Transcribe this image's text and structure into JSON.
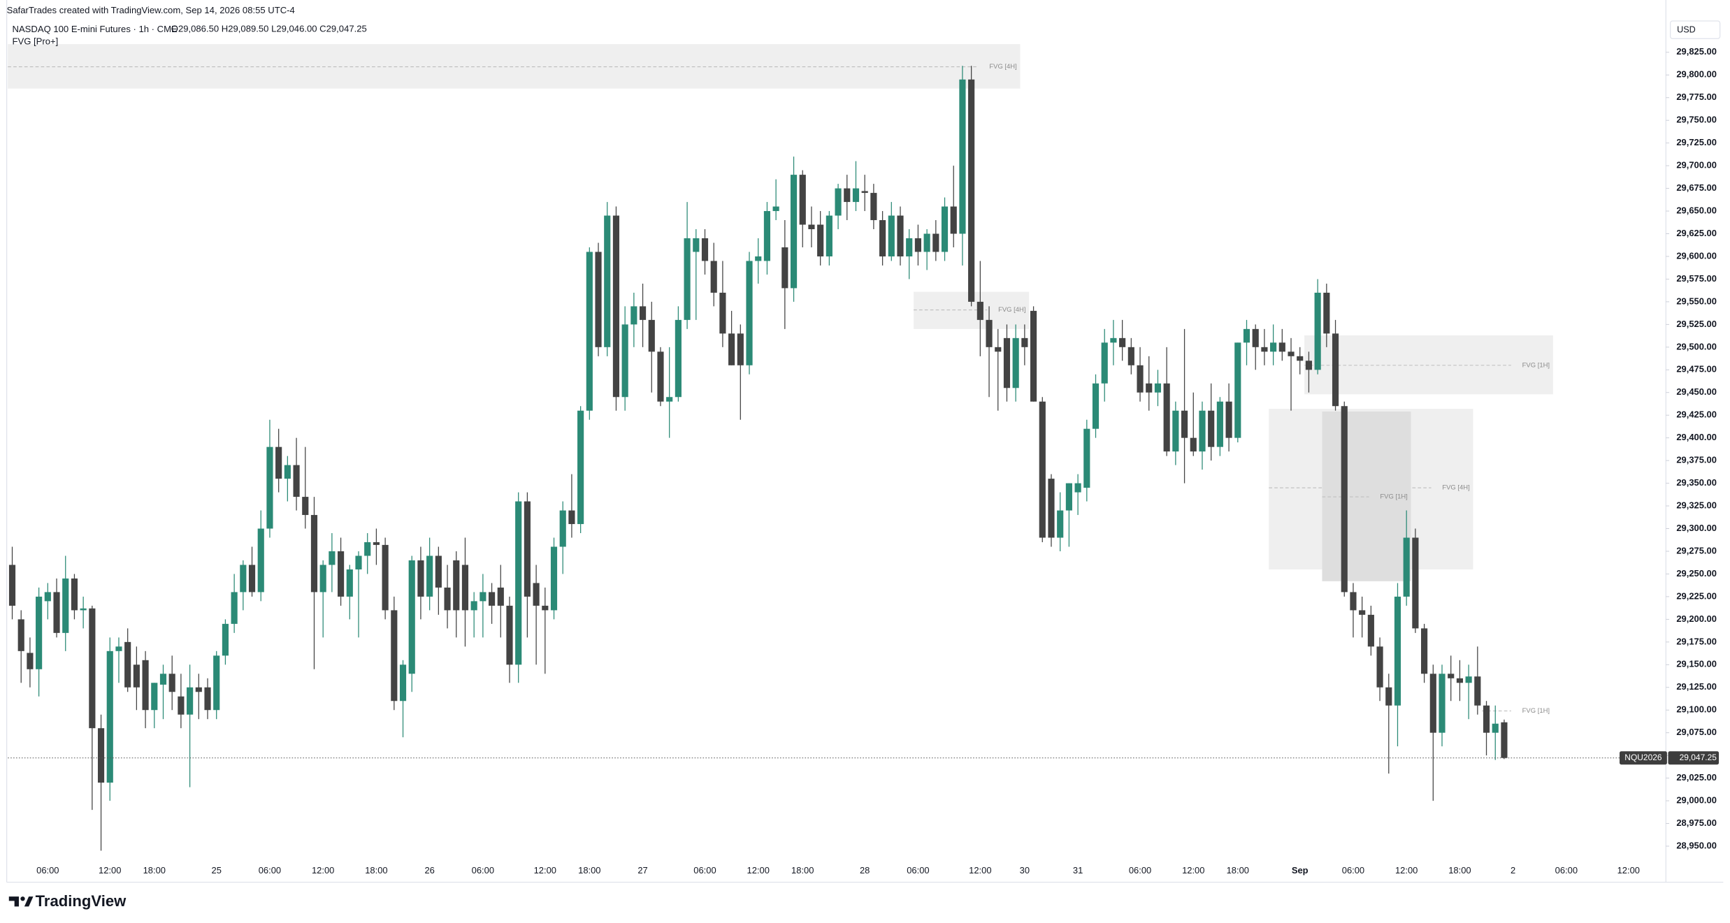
{
  "header": {
    "credit": "SafarTrades created with TradingView.com, Sep 14, 2026 08:55 UTC-4",
    "symbol_title": "NASDAQ 100 E-mini Futures · 1h · CME",
    "ohlc": [
      {
        "key": "O",
        "value": "29,086.50"
      },
      {
        "key": "H",
        "value": "29,089.50"
      },
      {
        "key": "L",
        "value": "29,046.00"
      },
      {
        "key": "C",
        "value": "29,047.25"
      }
    ],
    "indicator": "FVG [Pro+]"
  },
  "footer": {
    "brand": "TradingView"
  },
  "chart_data": {
    "type": "candlestick",
    "currency": "USD",
    "up_color": "#2b8a76",
    "down_color": "#434343",
    "grid": false,
    "categories": [
      null,
      null,
      null,
      null,
      "06:00",
      null,
      null,
      null,
      null,
      null,
      null,
      "12:00",
      null,
      null,
      null,
      null,
      "18:00",
      null,
      null,
      null,
      null,
      null,
      null,
      "25",
      null,
      null,
      null,
      null,
      null,
      "06:00",
      null,
      null,
      null,
      null,
      null,
      "12:00",
      null,
      null,
      null,
      null,
      null,
      "18:00",
      null,
      null,
      null,
      null,
      null,
      "26",
      null,
      null,
      null,
      null,
      null,
      "06:00",
      null,
      null,
      null,
      null,
      null,
      null,
      "12:00",
      null,
      null,
      null,
      null,
      "18:00",
      null,
      null,
      null,
      null,
      null,
      "27",
      null,
      null,
      null,
      null,
      null,
      null,
      "06:00",
      null,
      null,
      null,
      null,
      null,
      "12:00",
      null,
      null,
      null,
      null,
      "18:00",
      null,
      null,
      null,
      null,
      null,
      null,
      "28",
      null,
      null,
      null,
      null,
      null,
      "06:00",
      null,
      null,
      null,
      null,
      null,
      null,
      "12:00",
      null,
      null,
      null,
      null,
      "30",
      null,
      null,
      null,
      null,
      null,
      "31",
      null,
      null,
      null,
      null,
      null,
      null,
      "06:00",
      null,
      null,
      null,
      null,
      null,
      "12:00",
      null,
      null,
      null,
      null,
      "18:00",
      null,
      null,
      null,
      null,
      null,
      null,
      "Sep",
      null,
      null,
      null,
      null,
      null,
      "06:00",
      null,
      null,
      null,
      null,
      null,
      "12:00",
      null,
      null,
      null,
      null,
      null,
      "18:00",
      null,
      null,
      null,
      null,
      null,
      "2",
      null,
      null,
      null,
      null,
      null,
      "06:00",
      null,
      null,
      null,
      null,
      null,
      null,
      "12:00",
      null,
      null,
      null,
      null
    ],
    "open": [
      29260,
      29200,
      29163,
      29145,
      29220,
      29230,
      29185,
      29245,
      29210,
      29212,
      29080,
      29020,
      29165,
      29175,
      29150,
      29155,
      29100,
      29128,
      29140,
      29115,
      29095,
      29125,
      29125,
      29100,
      29160,
      29195,
      29230,
      29260,
      29230,
      29300,
      29390,
      29355,
      29370,
      29335,
      29315,
      29230,
      29260,
      29275,
      29225,
      29255,
      29270,
      29285,
      29282,
      29210,
      29110,
      29140,
      29265,
      29225,
      29270,
      29235,
      29265,
      29260,
      29210,
      29220,
      29230,
      29235,
      29215,
      29150,
      29330,
      29240,
      29215,
      29210,
      29280,
      29320,
      29305,
      29430,
      29605,
      29500,
      29645,
      29445,
      29525,
      29545,
      29530,
      29495,
      29440,
      29445,
      29530,
      29605,
      29620,
      29595,
      29560,
      29515,
      29515,
      29480,
      29595,
      29595,
      29650,
      29610,
      29565,
      29690,
      29635,
      29635,
      29600,
      29645,
      29675,
      29660,
      29672,
      29670,
      29640,
      29600,
      29645,
      29600,
      29620,
      29605,
      29625,
      29605,
      29655,
      29625,
      29795,
      29550,
      29530,
      29500,
      29510,
      29455,
      29510,
      29540,
      29440,
      29355,
      29290,
      29320,
      29340,
      29345,
      29410,
      29460,
      29505,
      29510,
      29500,
      29480,
      29460,
      29450,
      29460,
      29385,
      29430,
      29400,
      29385,
      29430,
      29390,
      29440,
      29400,
      29505,
      29520,
      29500,
      29495,
      29505,
      29495,
      29490,
      29485,
      29475,
      29560,
      29515,
      29435,
      29230,
      29210,
      29205,
      29170,
      29125,
      29105,
      29225,
      29290,
      29190,
      29140,
      29075,
      29140,
      29135,
      29130,
      29137,
      29105,
      29075,
      29086.5,
      null,
      null,
      null,
      null,
      null,
      null,
      null,
      null,
      null,
      null,
      null,
      null,
      null,
      null,
      null,
      null,
      null,
      null
    ],
    "high": [
      29280,
      29210,
      29180,
      29235,
      29240,
      29245,
      29270,
      29250,
      29225,
      29215,
      29095,
      29180,
      29180,
      29190,
      29170,
      29165,
      29130,
      29150,
      29160,
      29140,
      29150,
      29140,
      29135,
      29165,
      29200,
      29250,
      29265,
      29280,
      29320,
      29420,
      29410,
      29380,
      29400,
      29390,
      29335,
      29265,
      29295,
      29290,
      29260,
      29275,
      29295,
      29300,
      29290,
      29225,
      29155,
      29270,
      29280,
      29290,
      29280,
      29260,
      29275,
      29290,
      29230,
      29250,
      29240,
      29260,
      29225,
      29340,
      29340,
      29260,
      29235,
      29290,
      29330,
      29360,
      29435,
      29610,
      29615,
      29660,
      29655,
      29545,
      29560,
      29570,
      29550,
      29500,
      29500,
      29545,
      29660,
      29630,
      29630,
      29615,
      29595,
      29540,
      29525,
      29605,
      29620,
      29660,
      29685,
      29640,
      29710,
      29695,
      29655,
      29650,
      29650,
      29680,
      29690,
      29705,
      29690,
      29680,
      29650,
      29660,
      29655,
      29630,
      29635,
      29630,
      29640,
      29665,
      29700,
      29810,
      29810,
      29595,
      29545,
      29520,
      29525,
      29525,
      29525,
      29545,
      29445,
      29360,
      29340,
      29350,
      29360,
      29420,
      29470,
      29520,
      29530,
      29530,
      29510,
      29500,
      29490,
      29475,
      29500,
      29440,
      29520,
      29450,
      29440,
      29460,
      29445,
      29460,
      29505,
      29530,
      29525,
      29520,
      29525,
      29520,
      29510,
      29500,
      29495,
      29575,
      29570,
      29530,
      29440,
      29240,
      29225,
      29215,
      29180,
      29140,
      29240,
      29320,
      29300,
      29195,
      29150,
      29150,
      29160,
      29155,
      29150,
      29170,
      29110,
      29105,
      29089.5,
      null,
      null,
      null,
      null,
      null,
      null,
      null,
      null,
      null,
      null,
      null,
      null,
      null,
      null,
      null,
      null,
      null,
      null
    ],
    "low": [
      29200,
      29130,
      29125,
      29115,
      29200,
      29180,
      29165,
      29200,
      29190,
      28990,
      28945,
      29000,
      29130,
      29120,
      29100,
      29080,
      29080,
      29090,
      29100,
      29080,
      29015,
      29090,
      29090,
      29090,
      29150,
      29185,
      29210,
      29225,
      29220,
      29290,
      29340,
      29330,
      29320,
      29300,
      29145,
      29180,
      29230,
      29215,
      29200,
      29180,
      29250,
      29260,
      29200,
      29100,
      29070,
      29120,
      29200,
      29210,
      29205,
      29190,
      29180,
      29170,
      29180,
      29180,
      29195,
      29180,
      29130,
      29130,
      29180,
      29150,
      29140,
      29200,
      29250,
      29290,
      29295,
      29420,
      29490,
      29490,
      29430,
      29430,
      29500,
      29500,
      29450,
      29435,
      29400,
      29440,
      29520,
      29530,
      29580,
      29545,
      29500,
      29480,
      29420,
      29470,
      29570,
      29580,
      29640,
      29520,
      29550,
      29610,
      29610,
      29590,
      29590,
      29630,
      29640,
      29650,
      29650,
      29630,
      29590,
      29595,
      29590,
      29575,
      29590,
      29585,
      29595,
      29595,
      29610,
      29590,
      29545,
      29490,
      29445,
      29430,
      29440,
      29440,
      29480,
      29440,
      29285,
      29280,
      29275,
      29280,
      29315,
      29330,
      29400,
      29440,
      29480,
      29485,
      29470,
      29440,
      29430,
      29435,
      29380,
      29370,
      29350,
      29380,
      29365,
      29375,
      29380,
      29385,
      29395,
      29480,
      29475,
      29480,
      29480,
      29485,
      29430,
      29470,
      29450,
      29470,
      29500,
      29430,
      29225,
      29180,
      29180,
      29160,
      29110,
      29030,
      29060,
      29215,
      29185,
      29130,
      29000,
      29060,
      29110,
      29110,
      29090,
      29095,
      29050,
      29045,
      29046,
      null,
      null,
      null,
      null,
      null,
      null,
      null,
      null,
      null,
      null,
      null,
      null,
      null,
      null,
      null,
      null,
      null,
      null
    ],
    "close": [
      29215,
      29165,
      29145,
      29225,
      29230,
      29185,
      29245,
      29210,
      29212,
      29080,
      29020,
      29165,
      29170,
      29125,
      29125,
      29100,
      29130,
      29140,
      29120,
      29095,
      29125,
      29120,
      29100,
      29160,
      29195,
      29230,
      29260,
      29230,
      29300,
      29390,
      29355,
      29370,
      29335,
      29315,
      29230,
      29260,
      29275,
      29225,
      29255,
      29270,
      29285,
      29282,
      29210,
      29110,
      29150,
      29265,
      29225,
      29270,
      29235,
      29210,
      29210,
      29210,
      29220,
      29230,
      29215,
      29215,
      29150,
      29330,
      29225,
      29215,
      29210,
      29280,
      29320,
      29305,
      29430,
      29605,
      29500,
      29645,
      29445,
      29525,
      29545,
      29530,
      29495,
      29440,
      29445,
      29530,
      29620,
      29620,
      29595,
      29560,
      29515,
      29480,
      29480,
      29595,
      29600,
      29650,
      29655,
      29565,
      29690,
      29635,
      29630,
      29600,
      29645,
      29675,
      29660,
      29675,
      29670,
      29640,
      29600,
      29645,
      29600,
      29620,
      29605,
      29625,
      29605,
      29655,
      29625,
      29795,
      29550,
      29530,
      29500,
      29495,
      29455,
      29510,
      29500,
      29440,
      29290,
      29290,
      29320,
      29350,
      29350,
      29410,
      29460,
      29505,
      29510,
      29500,
      29480,
      29450,
      29450,
      29460,
      29385,
      29430,
      29400,
      29385,
      29430,
      29390,
      29440,
      29400,
      29505,
      29520,
      29500,
      29495,
      29505,
      29495,
      29490,
      29485,
      29475,
      29560,
      29515,
      29435,
      29230,
      29210,
      29205,
      29170,
      29125,
      29105,
      29225,
      29290,
      29190,
      29140,
      29075,
      29140,
      29135,
      29130,
      29137,
      29105,
      29075,
      29085,
      29047.25,
      null,
      null,
      null,
      null,
      null,
      null,
      null,
      null,
      null,
      null,
      null,
      null,
      null,
      null,
      null,
      null,
      null,
      null
    ],
    "ylim": [
      28937,
      29834
    ],
    "yticks": [
      {
        "value": 28950,
        "label": "28,950.00"
      },
      {
        "value": 28975,
        "label": "28,975.00"
      },
      {
        "value": 29000,
        "label": "29,000.00"
      },
      {
        "value": 29025,
        "label": "29,025.00"
      },
      {
        "value": 29050,
        "label": "29,050.00"
      },
      {
        "value": 29075,
        "label": "29,075.00"
      },
      {
        "value": 29100,
        "label": "29,100.00"
      },
      {
        "value": 29125,
        "label": "29,125.00"
      },
      {
        "value": 29150,
        "label": "29,150.00"
      },
      {
        "value": 29175,
        "label": "29,175.00"
      },
      {
        "value": 29200,
        "label": "29,200.00"
      },
      {
        "value": 29225,
        "label": "29,225.00"
      },
      {
        "value": 29250,
        "label": "29,250.00"
      },
      {
        "value": 29275,
        "label": "29,275.00"
      },
      {
        "value": 29300,
        "label": "29,300.00"
      },
      {
        "value": 29325,
        "label": "29,325.00"
      },
      {
        "value": 29350,
        "label": "29,350.00"
      },
      {
        "value": 29375,
        "label": "29,375.00"
      },
      {
        "value": 29400,
        "label": "29,400.00"
      },
      {
        "value": 29425,
        "label": "29,425.00"
      },
      {
        "value": 29450,
        "label": "29,450.00"
      },
      {
        "value": 29475,
        "label": "29,475.00"
      },
      {
        "value": 29500,
        "label": "29,500.00"
      },
      {
        "value": 29525,
        "label": "29,525.00"
      },
      {
        "value": 29550,
        "label": "29,550.00"
      },
      {
        "value": 29575,
        "label": "29,575.00"
      },
      {
        "value": 29600,
        "label": "29,600.00"
      },
      {
        "value": 29625,
        "label": "29,625.00"
      },
      {
        "value": 29650,
        "label": "29,650.00"
      },
      {
        "value": 29675,
        "label": "29,675.00"
      },
      {
        "value": 29700,
        "label": "29,700.00"
      },
      {
        "value": 29725,
        "label": "29,725.00"
      },
      {
        "value": 29750,
        "label": "29,750.00"
      },
      {
        "value": 29775,
        "label": "29,775.00"
      },
      {
        "value": 29800,
        "label": "29,800.00"
      },
      {
        "value": 29825,
        "label": "29,825.00"
      }
    ],
    "zones": [
      {
        "label": "FVG [4H]",
        "top": 29834,
        "bottom": 29785,
        "mid": 29809,
        "from": 0,
        "to": 113,
        "color": "#efefef"
      },
      {
        "label": "FVG [4H]",
        "top": 29561,
        "bottom": 29520,
        "mid": 29541,
        "from": 102,
        "to": 114,
        "color": "#efefef"
      },
      {
        "label": "FVG [1H]",
        "top": 29513,
        "bottom": 29448,
        "mid": 29480,
        "from": 146,
        "to": 173,
        "color": "#efefef"
      },
      {
        "label": "FVG [4H]",
        "top": 29432,
        "bottom": 29255,
        "mid": 29345,
        "from": 142,
        "to": 164,
        "color": "#efefef"
      },
      {
        "label": "FVG [1H]",
        "top": 29429,
        "bottom": 29242,
        "mid": 29335,
        "from": 148,
        "to": 157,
        "color": "#dedede"
      },
      {
        "label": "FVG [1H]",
        "mid": 29099,
        "from": 166,
        "to": 173
      }
    ],
    "last_price": {
      "value": 29047.25,
      "label": "29,047.25",
      "symbol": "NQU2026"
    }
  }
}
